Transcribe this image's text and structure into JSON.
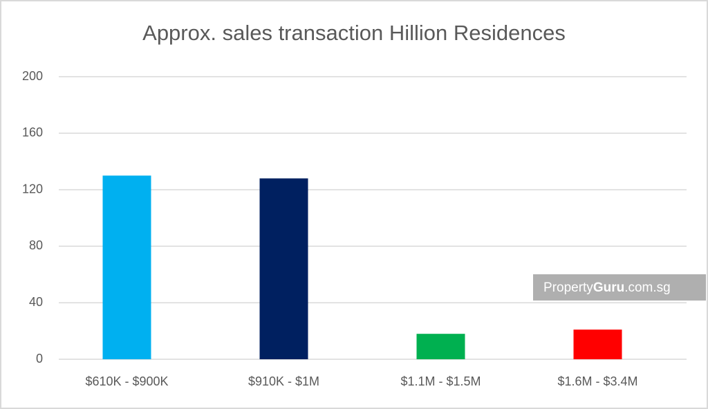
{
  "chart_data": {
    "type": "bar",
    "title": "Approx. sales transaction Hillion Residences",
    "categories": [
      "$610K - $900K",
      "$910K - $1M",
      "$1.1M - $1.5M",
      "$1.6M - $3.4M"
    ],
    "values": [
      130,
      128,
      18,
      21
    ],
    "colors": [
      "#00b0f0",
      "#002060",
      "#00b050",
      "#ff0000"
    ],
    "ylim": [
      0,
      200
    ],
    "yticks": [
      0,
      40,
      80,
      120,
      160,
      200
    ],
    "grid": true,
    "watermark": [
      "Property",
      "Guru",
      ".com.sg"
    ]
  }
}
